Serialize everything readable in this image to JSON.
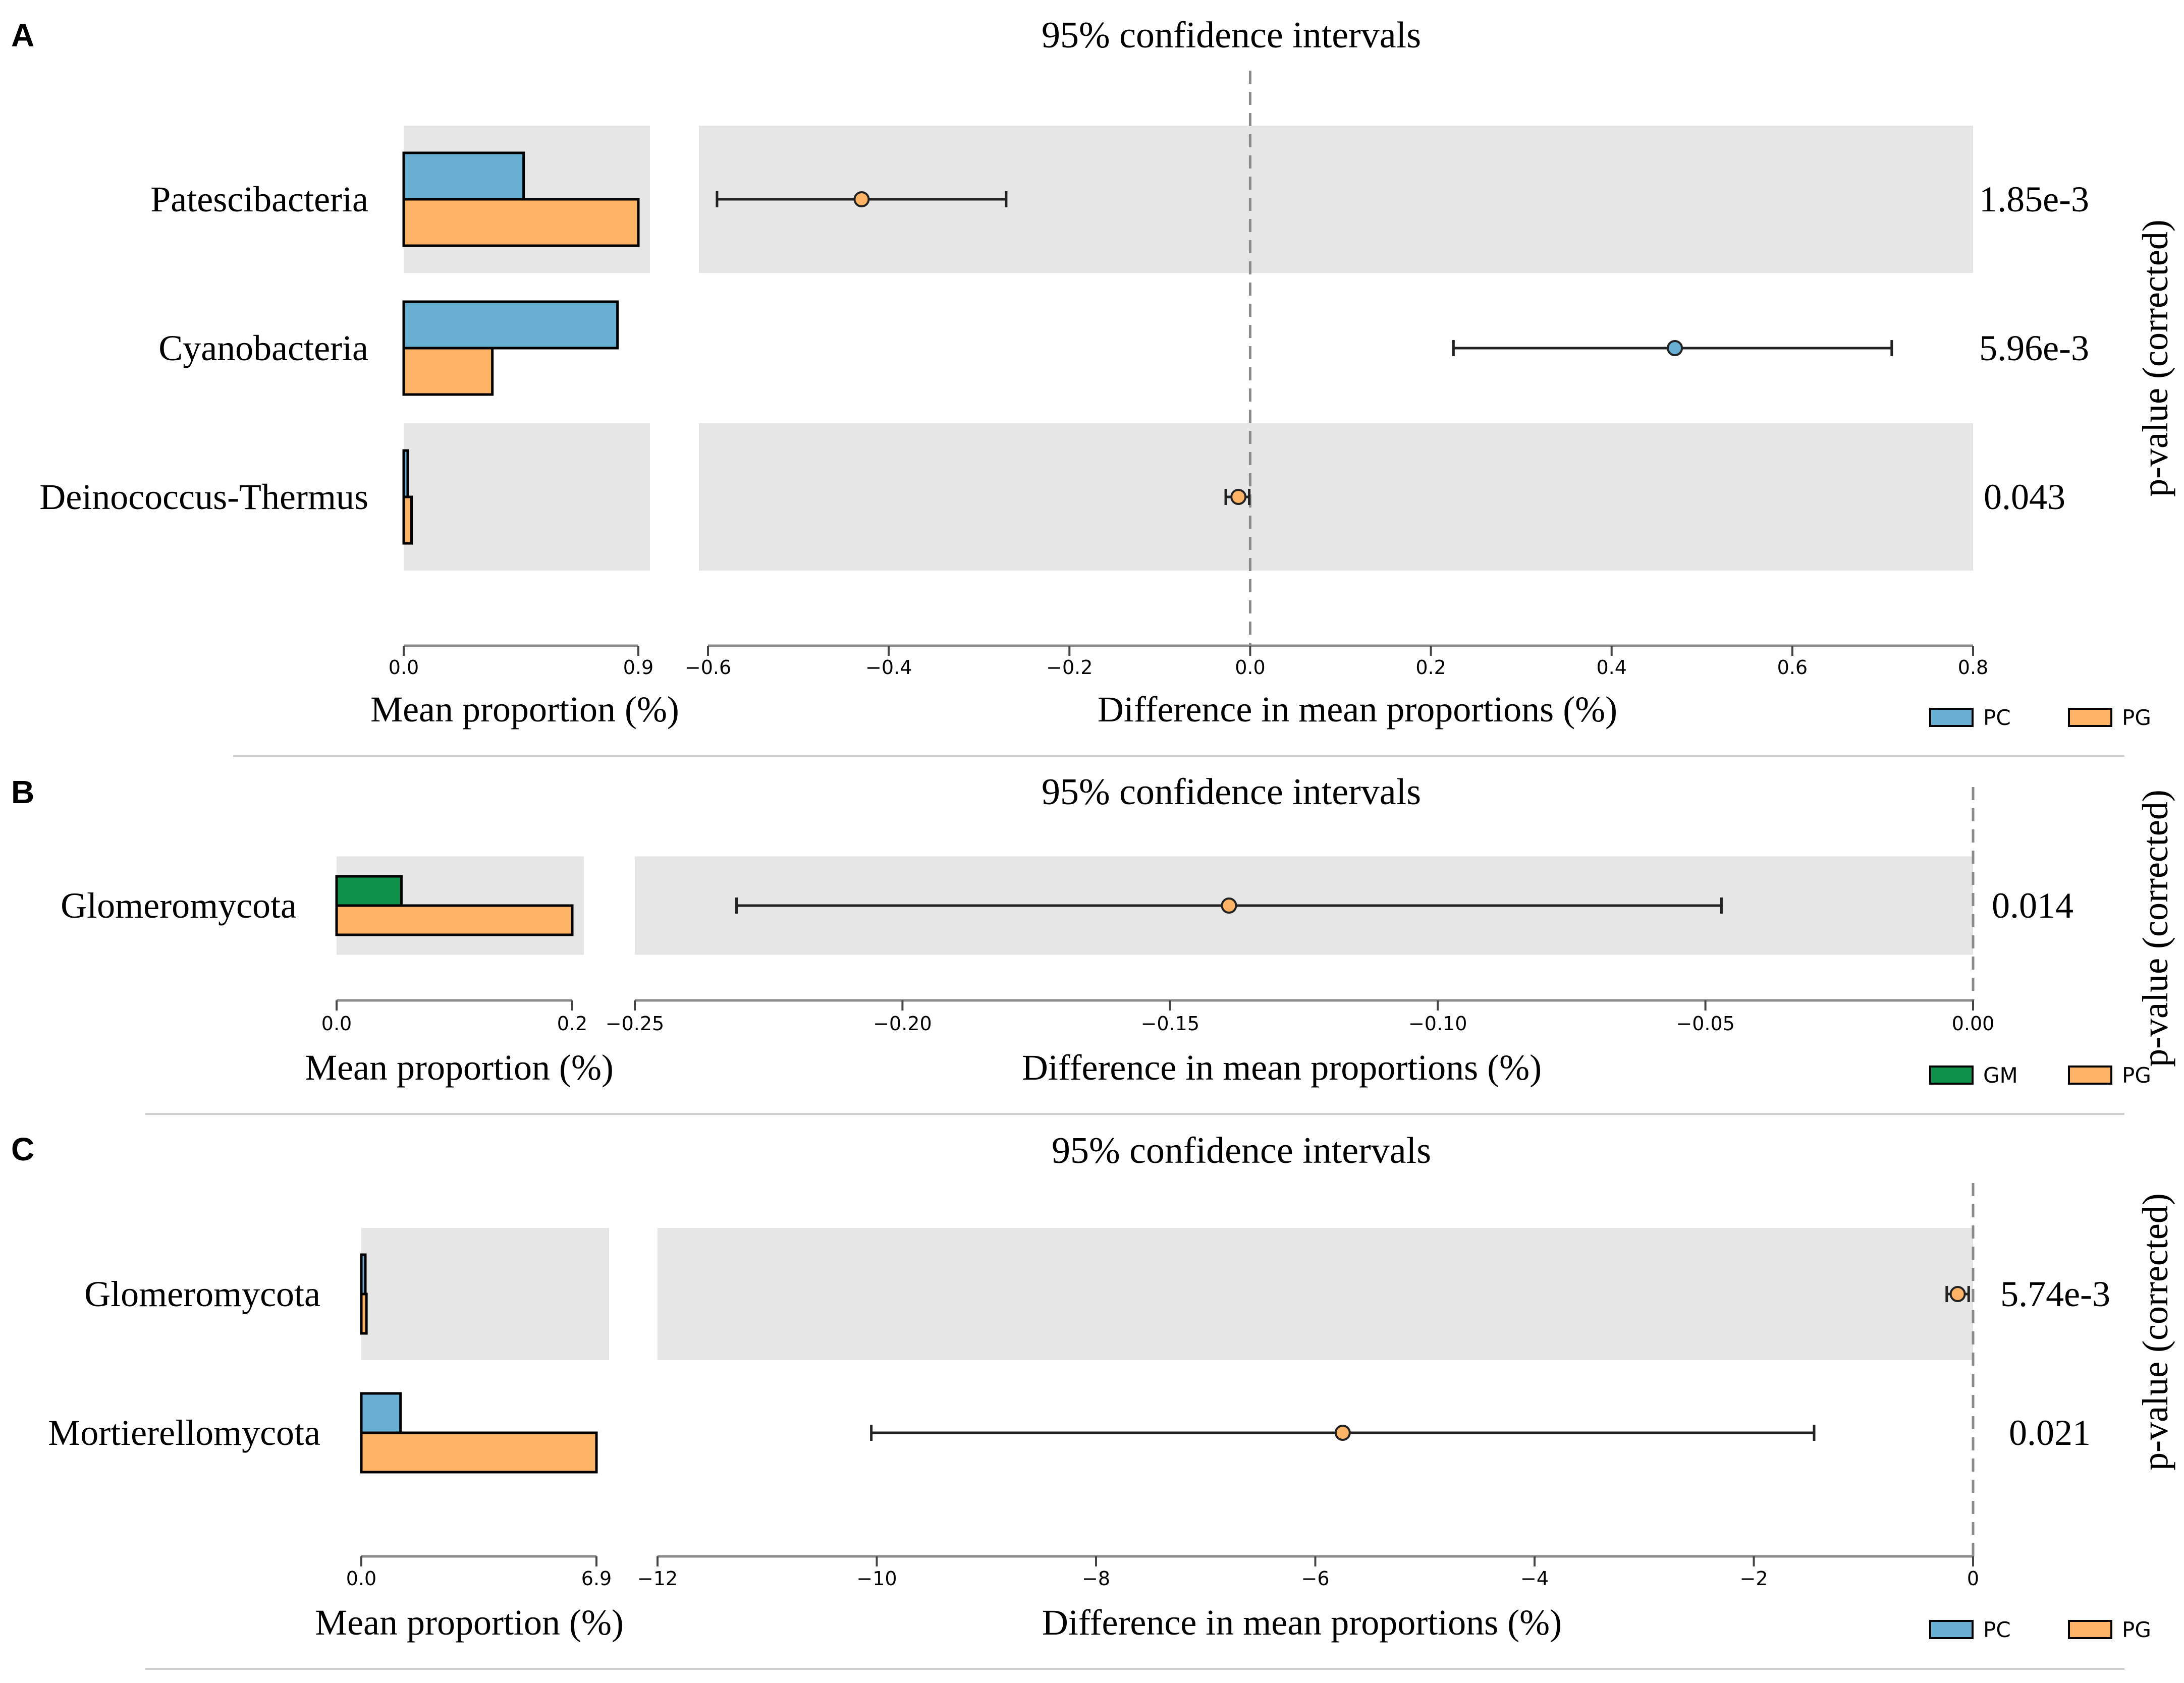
{
  "colors": {
    "PC": "#67afd3",
    "PG": "#fdb366",
    "GM": "#0e9149",
    "band": "#e6e6e6",
    "axis": "#8c8c8c",
    "divider": "#cfcfcf"
  },
  "chart_data": [
    {
      "panel": "A",
      "type": "extended-error-bar",
      "title": "95% confidence intervals",
      "left_xlabel": "Mean proportion (%)",
      "right_xlabel": "Difference in mean proportions (%)",
      "pvalue_label": "p-value (corrected)",
      "categories": [
        "Patescibacteria",
        "Cyanobacteria",
        "Deinococcus-Thermus"
      ],
      "groups": [
        "PC",
        "PG"
      ],
      "group_colors": [
        "#67afd3",
        "#fdb366"
      ],
      "mean_proportion": {
        "xlim": [
          0,
          0.9
        ],
        "ticks": [
          {
            "value": 0,
            "label": "0.0"
          },
          {
            "value": 0.9,
            "label": "0.9"
          }
        ],
        "series": [
          {
            "name": "PC",
            "values": [
              0.46,
              0.82,
              0.01
            ]
          },
          {
            "name": "PG",
            "values": [
              0.9,
              0.34,
              0.03
            ]
          }
        ]
      },
      "difference": {
        "xlim": [
          -0.6,
          0.8
        ],
        "ticks": [
          {
            "value": -0.6,
            "label": "−0.6"
          },
          {
            "value": -0.4,
            "label": "−0.4"
          },
          {
            "value": -0.2,
            "label": "−0.2"
          },
          {
            "value": 0,
            "label": "0.0"
          },
          {
            "value": 0.2,
            "label": "0.2"
          },
          {
            "value": 0.4,
            "label": "0.4"
          },
          {
            "value": 0.6,
            "label": "0.6"
          },
          {
            "value": 0.8,
            "label": "0.8"
          }
        ],
        "points": [
          {
            "estimate": -0.43,
            "ci": [
              -0.59,
              -0.27
            ],
            "group": "PG"
          },
          {
            "estimate": 0.47,
            "ci": [
              0.225,
              0.71
            ],
            "group": "PC"
          },
          {
            "estimate": -0.013,
            "ci": [
              -0.027,
              -0.001
            ],
            "group": "PG"
          }
        ]
      },
      "p_values": [
        "1.85e-3",
        "5.96e-3",
        "0.043"
      ],
      "legend": [
        "PC",
        "PG"
      ]
    },
    {
      "panel": "B",
      "type": "extended-error-bar",
      "title": "95% confidence intervals",
      "left_xlabel": "Mean proportion (%)",
      "right_xlabel": "Difference in mean proportions (%)",
      "pvalue_label": "p-value (corrected)",
      "categories": [
        "Glomeromycota"
      ],
      "groups": [
        "GM",
        "PG"
      ],
      "group_colors": [
        "#0e9149",
        "#fdb366"
      ],
      "mean_proportion": {
        "xlim": [
          0,
          0.2
        ],
        "ticks": [
          {
            "value": 0,
            "label": "0.0"
          },
          {
            "value": 0.2,
            "label": "0.2"
          }
        ],
        "series": [
          {
            "name": "GM",
            "values": [
              0.055
            ]
          },
          {
            "name": "PG",
            "values": [
              0.2
            ]
          }
        ]
      },
      "difference": {
        "xlim": [
          -0.25,
          0
        ],
        "ticks": [
          {
            "value": -0.25,
            "label": "−0.25"
          },
          {
            "value": -0.2,
            "label": "−0.20"
          },
          {
            "value": -0.15,
            "label": "−0.15"
          },
          {
            "value": -0.1,
            "label": "−0.10"
          },
          {
            "value": -0.05,
            "label": "−0.05"
          },
          {
            "value": 0,
            "label": "0.00"
          }
        ],
        "points": [
          {
            "estimate": -0.139,
            "ci": [
              -0.231,
              -0.047
            ],
            "group": "PG"
          }
        ]
      },
      "p_values": [
        "0.014"
      ],
      "legend": [
        "GM",
        "PG"
      ]
    },
    {
      "panel": "C",
      "type": "extended-error-bar",
      "title": "95% confidence intervals",
      "left_xlabel": "Mean proportion (%)",
      "right_xlabel": "Difference in mean proportions (%)",
      "pvalue_label": "p-value (corrected)",
      "categories": [
        "Glomeromycota",
        "Mortierellomycota"
      ],
      "groups": [
        "PC",
        "PG"
      ],
      "group_colors": [
        "#67afd3",
        "#fdb366"
      ],
      "mean_proportion": {
        "xlim": [
          0,
          6.9
        ],
        "ticks": [
          {
            "value": 0,
            "label": "0.0"
          },
          {
            "value": 6.9,
            "label": "6.9"
          }
        ],
        "series": [
          {
            "name": "PC",
            "values": [
              0.02,
              1.15
            ]
          },
          {
            "name": "PG",
            "values": [
              0.15,
              6.9
            ]
          }
        ]
      },
      "difference": {
        "xlim": [
          -12,
          0
        ],
        "ticks": [
          {
            "value": -12,
            "label": "−12"
          },
          {
            "value": -10,
            "label": "−10"
          },
          {
            "value": -8,
            "label": "−8"
          },
          {
            "value": -6,
            "label": "−6"
          },
          {
            "value": -4,
            "label": "−4"
          },
          {
            "value": -2,
            "label": "−2"
          },
          {
            "value": 0,
            "label": "0"
          }
        ],
        "points": [
          {
            "estimate": -0.14,
            "ci": [
              -0.24,
              -0.04
            ],
            "group": "PG"
          },
          {
            "estimate": -5.75,
            "ci": [
              -10.05,
              -1.45
            ],
            "group": "PG"
          }
        ]
      },
      "p_values": [
        "5.74e-3",
        "0.021"
      ],
      "legend": [
        "PC",
        "PG"
      ]
    }
  ]
}
